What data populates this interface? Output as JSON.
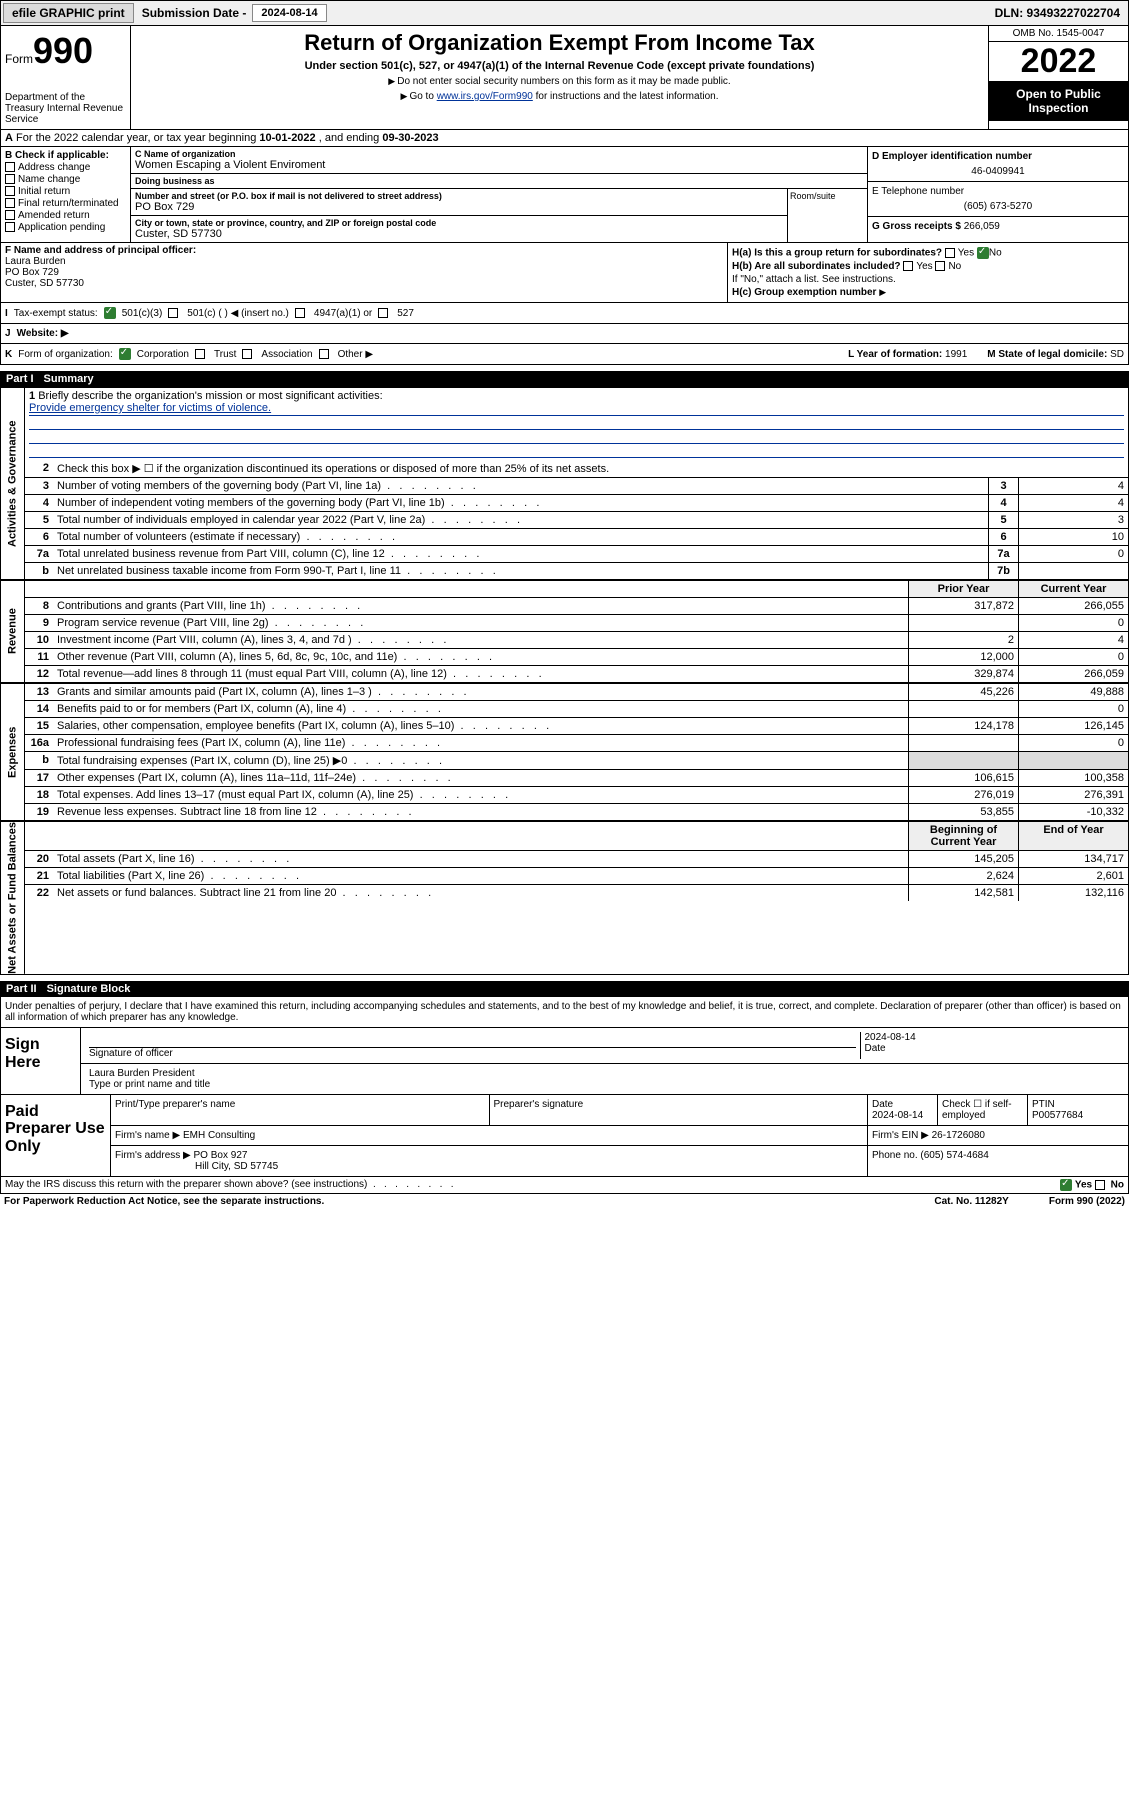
{
  "topbar": {
    "efile": "efile GRAPHIC print",
    "sub_label": "Submission Date - ",
    "sub_date": "2024-08-14",
    "dln": "DLN: 93493227022704"
  },
  "header": {
    "form_word": "Form",
    "form_num": "990",
    "dept": "Department of the Treasury\nInternal Revenue Service",
    "title": "Return of Organization Exempt From Income Tax",
    "sub": "Under section 501(c), 527, or 4947(a)(1) of the Internal Revenue Code (except private foundations)",
    "note1": "Do not enter social security numbers on this form as it may be made public.",
    "note2_pre": "Go to ",
    "note2_link": "www.irs.gov/Form990",
    "note2_post": " for instructions and the latest information.",
    "omb": "OMB No. 1545-0047",
    "year": "2022",
    "public": "Open to Public Inspection"
  },
  "sectionA": {
    "text_pre": "For the 2022 calendar year, or tax year beginning ",
    "begin": "10-01-2022",
    "mid": " , and ending ",
    "end": "09-30-2023"
  },
  "colB": {
    "hdr": "B Check if applicable:",
    "items": [
      "Address change",
      "Name change",
      "Initial return",
      "Final return/terminated",
      "Amended return",
      "Application pending"
    ]
  },
  "colC": {
    "name_lbl": "C Name of organization",
    "name": "Women Escaping a Violent Enviroment",
    "dba_lbl": "Doing business as",
    "dba": "",
    "addr_lbl": "Number and street (or P.O. box if mail is not delivered to street address)",
    "addr": "PO Box 729",
    "room_lbl": "Room/suite",
    "city_lbl": "City or town, state or province, country, and ZIP or foreign postal code",
    "city": "Custer, SD  57730"
  },
  "colDE": {
    "d_lbl": "D Employer identification number",
    "d_val": "46-0409941",
    "e_lbl": "E Telephone number",
    "e_val": "(605) 673-5270",
    "g_lbl": "G Gross receipts $ ",
    "g_val": "266,059"
  },
  "sectionF": {
    "lbl": "F Name and address of principal officer:",
    "name": "Laura Burden",
    "addr1": "PO Box 729",
    "addr2": "Custer, SD  57730"
  },
  "sectionH": {
    "a": "H(a)  Is this a group return for subordinates?",
    "a_yes": "Yes",
    "a_no": "No",
    "b": "H(b)  Are all subordinates included?",
    "b_yes": "Yes",
    "b_no": "No",
    "b_note": "If \"No,\" attach a list. See instructions.",
    "c": "H(c)  Group exemption number "
  },
  "statusrow": {
    "I": "I",
    "lbl": "Tax-exempt status:",
    "o1": "501(c)(3)",
    "o2": "501(c) (   ) ◀ (insert no.)",
    "o3": "4947(a)(1) or",
    "o4": "527"
  },
  "website": {
    "J": "J",
    "lbl": "Website: ▶"
  },
  "korg": {
    "K": "K",
    "lbl": "Form of organization:",
    "o1": "Corporation",
    "o2": "Trust",
    "o3": "Association",
    "o4": "Other ▶",
    "L": "L Year of formation: ",
    "L_val": "1991",
    "M": "M State of legal domicile: ",
    "M_val": "SD"
  },
  "part1": {
    "num": "Part I",
    "title": "Summary"
  },
  "vtabs": {
    "gov": "Activities & Governance",
    "rev": "Revenue",
    "exp": "Expenses",
    "net": "Net Assets or Fund Balances"
  },
  "gov": {
    "l1_lbl": "Briefly describe the organization's mission or most significant activities:",
    "l1_val": "Provide emergency shelter for victims of violence.",
    "l2": "Check this box ▶ ☐  if the organization discontinued its operations or disposed of more than 25% of its net assets.",
    "rows": [
      {
        "n": "3",
        "d": "Number of voting members of the governing body (Part VI, line 1a)",
        "b": "3",
        "v": "4"
      },
      {
        "n": "4",
        "d": "Number of independent voting members of the governing body (Part VI, line 1b)",
        "b": "4",
        "v": "4"
      },
      {
        "n": "5",
        "d": "Total number of individuals employed in calendar year 2022 (Part V, line 2a)",
        "b": "5",
        "v": "3"
      },
      {
        "n": "6",
        "d": "Total number of volunteers (estimate if necessary)",
        "b": "6",
        "v": "10"
      },
      {
        "n": "7a",
        "d": "Total unrelated business revenue from Part VIII, column (C), line 12",
        "b": "7a",
        "v": "0"
      },
      {
        "n": "b",
        "d": "Net unrelated business taxable income from Form 990-T, Part I, line 11",
        "b": "7b",
        "v": ""
      }
    ]
  },
  "yrhdr": {
    "prior": "Prior Year",
    "curr": "Current Year"
  },
  "rev": [
    {
      "n": "8",
      "d": "Contributions and grants (Part VIII, line 1h)",
      "p": "317,872",
      "c": "266,055"
    },
    {
      "n": "9",
      "d": "Program service revenue (Part VIII, line 2g)",
      "p": "",
      "c": "0"
    },
    {
      "n": "10",
      "d": "Investment income (Part VIII, column (A), lines 3, 4, and 7d )",
      "p": "2",
      "c": "4"
    },
    {
      "n": "11",
      "d": "Other revenue (Part VIII, column (A), lines 5, 6d, 8c, 9c, 10c, and 11e)",
      "p": "12,000",
      "c": "0"
    },
    {
      "n": "12",
      "d": "Total revenue—add lines 8 through 11 (must equal Part VIII, column (A), line 12)",
      "p": "329,874",
      "c": "266,059"
    }
  ],
  "exp": [
    {
      "n": "13",
      "d": "Grants and similar amounts paid (Part IX, column (A), lines 1–3 )",
      "p": "45,226",
      "c": "49,888"
    },
    {
      "n": "14",
      "d": "Benefits paid to or for members (Part IX, column (A), line 4)",
      "p": "",
      "c": "0"
    },
    {
      "n": "15",
      "d": "Salaries, other compensation, employee benefits (Part IX, column (A), lines 5–10)",
      "p": "124,178",
      "c": "126,145"
    },
    {
      "n": "16a",
      "d": "Professional fundraising fees (Part IX, column (A), line 11e)",
      "p": "",
      "c": "0"
    },
    {
      "n": "b",
      "d": "Total fundraising expenses (Part IX, column (D), line 25) ▶0",
      "p": "",
      "c": "",
      "grey": true
    },
    {
      "n": "17",
      "d": "Other expenses (Part IX, column (A), lines 11a–11d, 11f–24e)",
      "p": "106,615",
      "c": "100,358"
    },
    {
      "n": "18",
      "d": "Total expenses. Add lines 13–17 (must equal Part IX, column (A), line 25)",
      "p": "276,019",
      "c": "276,391"
    },
    {
      "n": "19",
      "d": "Revenue less expenses. Subtract line 18 from line 12",
      "p": "53,855",
      "c": "-10,332"
    }
  ],
  "nethdr": {
    "beg": "Beginning of Current Year",
    "end": "End of Year"
  },
  "net": [
    {
      "n": "20",
      "d": "Total assets (Part X, line 16)",
      "p": "145,205",
      "c": "134,717"
    },
    {
      "n": "21",
      "d": "Total liabilities (Part X, line 26)",
      "p": "2,624",
      "c": "2,601"
    },
    {
      "n": "22",
      "d": "Net assets or fund balances. Subtract line 21 from line 20",
      "p": "142,581",
      "c": "132,116"
    }
  ],
  "part2": {
    "num": "Part II",
    "title": "Signature Block"
  },
  "sigtext": "Under penalties of perjury, I declare that I have examined this return, including accompanying schedules and statements, and to the best of my knowledge and belief, it is true, correct, and complete. Declaration of preparer (other than officer) is based on all information of which preparer has any knowledge.",
  "sign": {
    "here": "Sign Here",
    "sig_lbl": "Signature of officer",
    "date_lbl": "Date",
    "date": "2024-08-14",
    "name": "Laura Burden  President",
    "name_lbl": "Type or print name and title"
  },
  "paid": {
    "title": "Paid Preparer Use Only",
    "h1": "Print/Type preparer's name",
    "h2": "Preparer's signature",
    "h3": "Date",
    "h3v": "2024-08-14",
    "h4": "Check ☐ if self-employed",
    "h5": "PTIN",
    "h5v": "P00577684",
    "firm_lbl": "Firm's name      ▶ ",
    "firm": "EMH Consulting",
    "ein_lbl": "Firm's EIN ▶ ",
    "ein": "26-1726080",
    "addr_lbl": "Firm's address ▶ ",
    "addr1": "PO Box 927",
    "addr2": "Hill City, SD  57745",
    "phone_lbl": "Phone no. ",
    "phone": "(605) 574-4684"
  },
  "footer": {
    "q": "May the IRS discuss this return with the preparer shown above? (see instructions)",
    "yes": "Yes",
    "no": "No"
  },
  "footline": {
    "l": "For Paperwork Reduction Act Notice, see the separate instructions.",
    "c": "Cat. No. 11282Y",
    "r": "Form 990 (2022)"
  }
}
